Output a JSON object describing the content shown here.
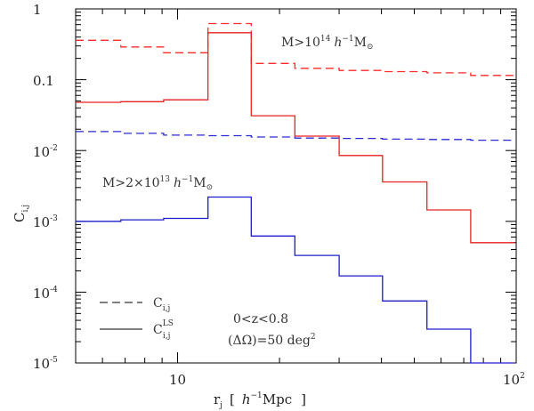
{
  "chart_data": {
    "type": "line",
    "title": "",
    "xlabel": "r_j [ h^-1 Mpc ]",
    "ylabel": "C_i,j",
    "xscale": "log",
    "yscale": "log",
    "xlim": [
      5,
      100
    ],
    "ylim": [
      1e-05,
      1
    ],
    "x_ticks": [
      {
        "value": 10,
        "label": "10"
      },
      {
        "value": 100,
        "label": "10",
        "exp": "2"
      }
    ],
    "y_ticks": [
      {
        "value": 1,
        "label": "1",
        "exp": ""
      },
      {
        "value": 0.1,
        "label": "0.1",
        "exp": ""
      },
      {
        "value": 0.01,
        "label": "10",
        "exp": "-2"
      },
      {
        "value": 0.001,
        "label": "10",
        "exp": "-3"
      },
      {
        "value": 0.0001,
        "label": "10",
        "exp": "-4"
      },
      {
        "value": 1e-05,
        "label": "10",
        "exp": "-5"
      }
    ],
    "bin_edges": [
      5.0,
      6.8,
      9.1,
      12.3,
      16.5,
      22.2,
      30.0,
      40.3,
      54.5,
      73.4,
      99.0
    ],
    "series": [
      {
        "name": "C_i,j (M>10^14)",
        "color": "#ff2a2a",
        "dash": "9,5",
        "values": [
          0.36,
          0.29,
          0.24,
          0.62,
          0.17,
          0.145,
          0.135,
          0.13,
          0.125,
          0.115
        ]
      },
      {
        "name": "C_i,j^LS (M>10^14)",
        "color": "#e62222",
        "dash": "",
        "values": [
          0.048,
          0.049,
          0.052,
          0.46,
          0.031,
          0.016,
          0.0085,
          0.0036,
          0.00145,
          0.0005
        ]
      },
      {
        "name": "C_i,j (M>2x10^13)",
        "color": "#2a2ad6",
        "dash": "9,5",
        "values": [
          0.0185,
          0.0175,
          0.0165,
          0.0162,
          0.0155,
          0.015,
          0.0148,
          0.0145,
          0.0143,
          0.014
        ]
      },
      {
        "name": "C_i,j^LS (M>2x10^13)",
        "color": "#1c1ccc",
        "dash": "",
        "values": [
          0.001,
          0.00105,
          0.0011,
          0.0022,
          0.00062,
          0.00033,
          0.00017,
          7.5e-05,
          3e-05,
          1e-05
        ]
      }
    ],
    "annotations": {
      "red_mass": "M>10^14 h^-1 M_sun",
      "blue_mass": "M>2x10^13 h^-1 M_sun",
      "redshift": "0<z<0.8",
      "area": "(ΔΩ)=50 deg²"
    },
    "legend": {
      "placement": "bottom-left",
      "dashed_label": "C",
      "dashed_sub": "i,j",
      "solid_label": "C",
      "solid_sub": "i,j",
      "solid_sup": "LS"
    },
    "text": {
      "red_M": "M>10",
      "red_exp": "14",
      "red_h": "h",
      "red_hexp": "−1",
      "red_Msun": "M",
      "red_sun": "⊙",
      "blue_M": "M>2×10",
      "blue_exp": "13",
      "blue_h": "h",
      "blue_hexp": "−1",
      "blue_Msun": "M",
      "blue_sun": "⊙",
      "z_range": "0<z<0.8",
      "area": "(ΔΩ)=50 deg",
      "area_exp": "2",
      "ylabel_C": "C",
      "ylabel_sub": "i,j",
      "xlabel_r": "r",
      "xlabel_sub": "j",
      "xlabel_bracket_open": "[",
      "xlabel_h": "h",
      "xlabel_hexp": "−1",
      "xlabel_Mpc": "Mpc",
      "xlabel_bracket_close": "]"
    }
  }
}
